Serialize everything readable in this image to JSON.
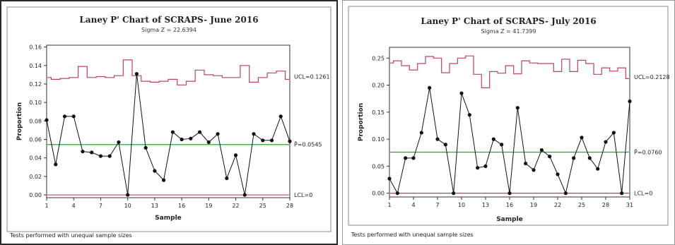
{
  "chart_data": [
    {
      "type": "line",
      "title": "Laney P' Chart of SCRAPS- June 2016",
      "subtitle": "Sigma Z = 22.6394",
      "xlabel": "Sample",
      "ylabel": "Proportion",
      "xticks": [
        "1",
        "4",
        "7",
        "10",
        "13",
        "16",
        "19",
        "22",
        "25",
        "28"
      ],
      "yticks": [
        "0.00",
        "0.02",
        "0.04",
        "0.06",
        "0.08",
        "0.10",
        "0.12",
        "0.14",
        "0.16"
      ],
      "xlim": [
        1,
        28
      ],
      "ylim": [
        -0.003,
        0.162
      ],
      "grid": false,
      "footnote": "Tests performed with unequal sample sizes",
      "center_label": "P̄=0.0545",
      "ucl_label": "UCL=0.1261",
      "lcl_label": "LCL=0",
      "center": 0.0545,
      "lcl": 0,
      "colors": {
        "points": "#111111",
        "center": "#2e9e2e",
        "limits": "#c04060"
      },
      "series": [
        {
          "values": [
            0.081,
            0.033,
            0.085,
            0.085,
            0.047,
            0.046,
            0.042,
            0.042,
            0.057,
            0.0,
            0.131,
            0.051,
            0.026,
            0.016,
            0.068,
            0.06,
            0.061,
            0.068,
            0.057,
            0.066,
            0.018,
            0.043,
            0.0,
            0.066,
            0.059,
            0.059,
            0.085,
            0.058
          ]
        }
      ],
      "ucl": [
        0.127,
        0.125,
        0.126,
        0.127,
        0.139,
        0.127,
        0.128,
        0.127,
        0.129,
        0.146,
        0.129,
        0.123,
        0.122,
        0.123,
        0.125,
        0.119,
        0.123,
        0.135,
        0.13,
        0.129,
        0.127,
        0.127,
        0.14,
        0.122,
        0.127,
        0.132,
        0.134,
        0.125
      ]
    },
    {
      "type": "line",
      "title": "Laney P' Chart of SCRAPS- July 2016",
      "subtitle": "Sigma Z = 41.7399",
      "xlabel": "Sample",
      "ylabel": "Proportion",
      "xticks": [
        "1",
        "4",
        "7",
        "10",
        "13",
        "16",
        "19",
        "22",
        "25",
        "28",
        "31"
      ],
      "yticks": [
        "0.00",
        "0.05",
        "0.10",
        "0.15",
        "0.20",
        "0.25"
      ],
      "xlim": [
        1,
        31
      ],
      "ylim": [
        -0.007,
        0.27
      ],
      "grid": false,
      "footnote": "Tests performed with unequal sample sizes",
      "center_label": "P̄=0.0760",
      "ucl_label": "UCL=0.2128",
      "lcl_label": "LCL=0",
      "center": 0.076,
      "lcl": 0,
      "colors": {
        "points": "#111111",
        "center": "#2e9e2e",
        "limits": "#c04060"
      },
      "series": [
        {
          "values": [
            0.027,
            0.0,
            0.065,
            0.065,
            0.112,
            0.195,
            0.1,
            0.09,
            0.0,
            0.185,
            0.145,
            0.047,
            0.05,
            0.1,
            0.09,
            0.0,
            0.158,
            0.055,
            0.043,
            0.08,
            0.068,
            0.035,
            0.0,
            0.065,
            0.103,
            0.065,
            0.045,
            0.095,
            0.112,
            0.0,
            0.17
          ]
        }
      ],
      "ucl": [
        0.241,
        0.245,
        0.236,
        0.228,
        0.24,
        0.253,
        0.25,
        0.223,
        0.24,
        0.25,
        0.254,
        0.22,
        0.195,
        0.225,
        0.222,
        0.236,
        0.221,
        0.245,
        0.241,
        0.24,
        0.24,
        0.225,
        0.248,
        0.225,
        0.246,
        0.24,
        0.22,
        0.232,
        0.226,
        0.232,
        0.212
      ]
    }
  ]
}
